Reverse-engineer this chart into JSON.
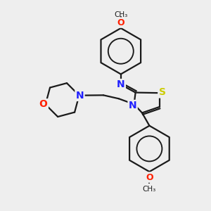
{
  "bg_color": "#eeeeee",
  "bond_color": "#1a1a1a",
  "atom_colors": {
    "N": "#2020ff",
    "O": "#ff2000",
    "S": "#cccc00"
  },
  "figsize": [
    3.0,
    3.0
  ],
  "dpi": 100
}
